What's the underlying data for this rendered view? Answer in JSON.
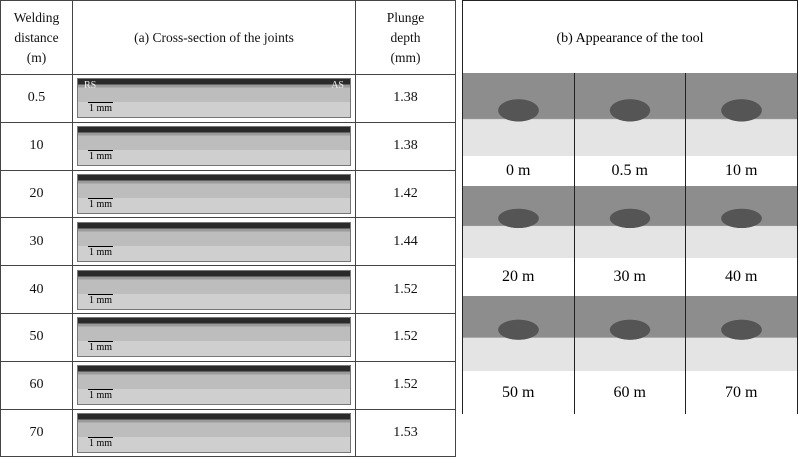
{
  "left_table": {
    "headers": [
      [
        "Welding",
        "distance",
        "(m)"
      ],
      [
        "(a) Cross-section of the joints"
      ],
      [
        "Plunge",
        "depth",
        "(mm)"
      ]
    ],
    "side_labels": [
      "RS",
      "AS"
    ],
    "rows": [
      [
        "0.5",
        "1 mm",
        "1.38"
      ],
      [
        "10",
        "1 mm",
        "1.38"
      ],
      [
        "20",
        "1 mm",
        "1.42"
      ],
      [
        "30",
        "1 mm",
        "1.44"
      ],
      [
        "40",
        "1 mm",
        "1.52"
      ],
      [
        "50",
        "1 mm",
        "1.52"
      ],
      [
        "60",
        "1 mm",
        "1.52"
      ],
      [
        "70",
        "1 mm",
        "1.53"
      ]
    ]
  },
  "right_panel": {
    "title": "(b) Appearance of the tool",
    "labels": [
      "0 m",
      "0.5 m",
      "10 m",
      "20 m",
      "30 m",
      "40 m",
      "50 m",
      "60 m",
      "70 m"
    ]
  }
}
